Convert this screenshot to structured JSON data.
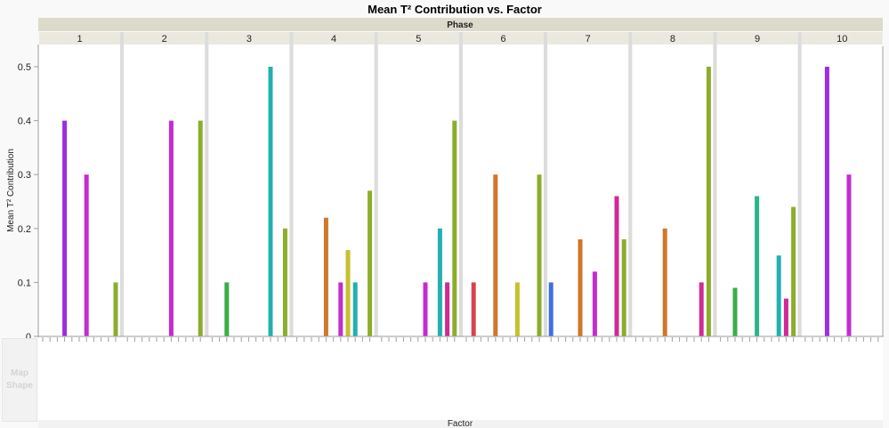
{
  "chart_data": {
    "type": "bar",
    "title": "Mean T² Contribution vs. Factor",
    "group_label": "Phase",
    "xlabel": "Factor",
    "ylabel": "Mean T² Contribution",
    "ylim": [
      0,
      0.53
    ],
    "yticks": [
      "0",
      "0.1",
      "0.2",
      "0.3",
      "0.4",
      "0.5"
    ],
    "ytick_values": [
      0,
      0.1,
      0.2,
      0.3,
      0.4,
      0.5
    ],
    "factor_count": 11,
    "factor_colors": [
      "#4070dc",
      "#d9434f",
      "#3aae45",
      "#9e2ce0",
      "#cf772a",
      "#2bb48c",
      "#c42ccf",
      "#c6c12c",
      "#22b0b0",
      "#cf2a96",
      "#8cad2a"
    ],
    "panels": [
      {
        "phase": "1",
        "bars": [
          {
            "factor": 3,
            "value": 0.4
          },
          {
            "factor": 6,
            "value": 0.3
          },
          {
            "factor": 10,
            "value": 0.1
          }
        ]
      },
      {
        "phase": "2",
        "bars": [
          {
            "factor": 6,
            "value": 0.4
          },
          {
            "factor": 10,
            "value": 0.4
          }
        ]
      },
      {
        "phase": "3",
        "bars": [
          {
            "factor": 2,
            "value": 0.1
          },
          {
            "factor": 8,
            "value": 0.5
          },
          {
            "factor": 10,
            "value": 0.2
          }
        ]
      },
      {
        "phase": "4",
        "bars": [
          {
            "factor": 4,
            "value": 0.22
          },
          {
            "factor": 6,
            "value": 0.1
          },
          {
            "factor": 7,
            "value": 0.16
          },
          {
            "factor": 8,
            "value": 0.1
          },
          {
            "factor": 10,
            "value": 0.27
          }
        ]
      },
      {
        "phase": "5",
        "bars": [
          {
            "factor": 6,
            "value": 0.1
          },
          {
            "factor": 8,
            "value": 0.2
          },
          {
            "factor": 9,
            "value": 0.1
          },
          {
            "factor": 10,
            "value": 0.4
          }
        ]
      },
      {
        "phase": "6",
        "bars": [
          {
            "factor": 1,
            "value": 0.1
          },
          {
            "factor": 4,
            "value": 0.3
          },
          {
            "factor": 7,
            "value": 0.1
          },
          {
            "factor": 10,
            "value": 0.3
          }
        ]
      },
      {
        "phase": "7",
        "bars": [
          {
            "factor": 0,
            "value": 0.1
          },
          {
            "factor": 4,
            "value": 0.18
          },
          {
            "factor": 6,
            "value": 0.12
          },
          {
            "factor": 9,
            "value": 0.26
          },
          {
            "factor": 10,
            "value": 0.18
          }
        ]
      },
      {
        "phase": "8",
        "bars": [
          {
            "factor": 4,
            "value": 0.2
          },
          {
            "factor": 9,
            "value": 0.1
          },
          {
            "factor": 10,
            "value": 0.5
          }
        ]
      },
      {
        "phase": "9",
        "bars": [
          {
            "factor": 2,
            "value": 0.09
          },
          {
            "factor": 5,
            "value": 0.26
          },
          {
            "factor": 8,
            "value": 0.15
          },
          {
            "factor": 9,
            "value": 0.07
          },
          {
            "factor": 10,
            "value": 0.24
          }
        ]
      },
      {
        "phase": "10",
        "bars": [
          {
            "factor": 3,
            "value": 0.5
          },
          {
            "factor": 6,
            "value": 0.3
          }
        ]
      }
    ]
  },
  "map_shape_label": "Map Shape"
}
